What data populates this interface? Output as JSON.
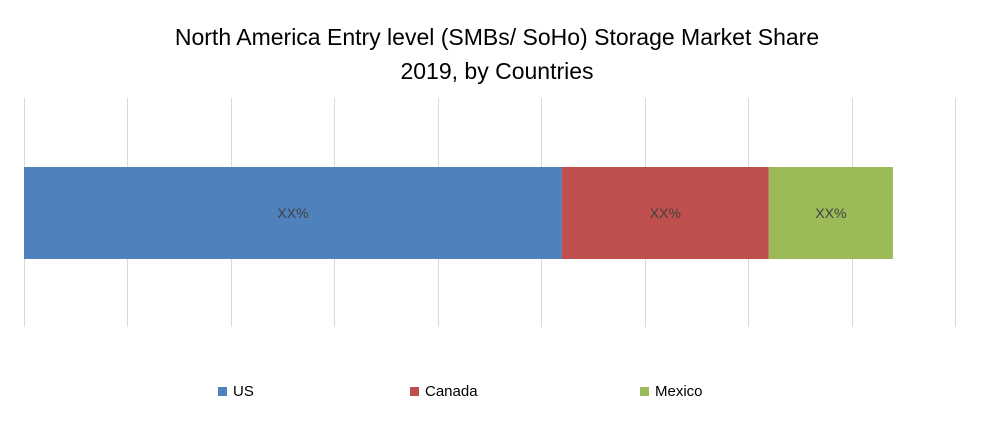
{
  "chart_data": {
    "type": "bar",
    "orientation": "horizontal",
    "stacked": true,
    "title": "North America Entry level (SMBs/ SoHo) Storage Market Share 2019, by Countries",
    "title_lines": [
      "North America Entry level (SMBs/ SoHo) Storage Market Share",
      "2019, by Countries"
    ],
    "xlim": [
      0,
      0.9
    ],
    "grid": true,
    "legend_position": "bottom",
    "series": [
      {
        "name": "US",
        "value": 0.52,
        "label": "XX%",
        "color": "#4F81BD"
      },
      {
        "name": "Canada",
        "value": 0.2,
        "label": "XX%",
        "color": "#C0504D"
      },
      {
        "name": "Mexico",
        "value": 0.12,
        "label": "XX%",
        "color": "#9BBB59"
      }
    ]
  }
}
